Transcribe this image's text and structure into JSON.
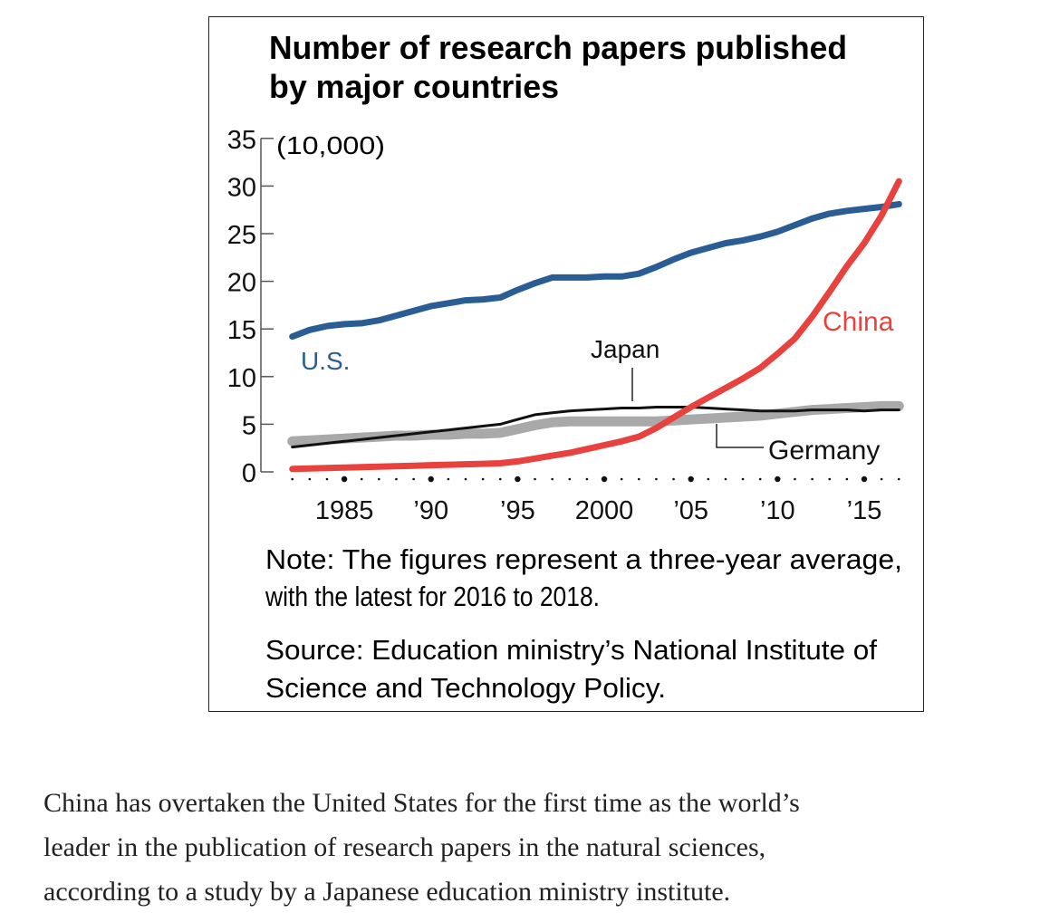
{
  "chart_data": {
    "type": "line",
    "title": [
      "Number of research papers published",
      "by major countries"
    ],
    "unit_label": "(10,000)",
    "ylim": [
      0,
      35
    ],
    "yticks": [
      0,
      5,
      10,
      15,
      20,
      25,
      30,
      35
    ],
    "xlim": [
      1982,
      2017
    ],
    "xtick_labels": [
      {
        "year": 1985,
        "label": "1985"
      },
      {
        "year": 1990,
        "label": "’90"
      },
      {
        "year": 1995,
        "label": "’95"
      },
      {
        "year": 2000,
        "label": "2000"
      },
      {
        "year": 2005,
        "label": "’05"
      },
      {
        "year": 2010,
        "label": "’10"
      },
      {
        "year": 2015,
        "label": "’15"
      }
    ],
    "x": [
      1982,
      1983,
      1984,
      1985,
      1986,
      1987,
      1988,
      1989,
      1990,
      1991,
      1992,
      1993,
      1994,
      1995,
      1996,
      1997,
      1998,
      1999,
      2000,
      2001,
      2002,
      2003,
      2004,
      2005,
      2006,
      2007,
      2008,
      2009,
      2010,
      2011,
      2012,
      2013,
      2014,
      2015,
      2016,
      2017
    ],
    "series": [
      {
        "name": "Germany",
        "label": "Germany",
        "color": "#a9a9a9",
        "values": [
          3.2,
          3.3,
          3.4,
          3.5,
          3.6,
          3.7,
          3.8,
          3.8,
          3.9,
          3.9,
          4.0,
          4.0,
          4.1,
          4.5,
          4.9,
          5.2,
          5.3,
          5.3,
          5.3,
          5.3,
          5.3,
          5.3,
          5.4,
          5.5,
          5.6,
          5.7,
          5.8,
          5.9,
          6.1,
          6.3,
          6.5,
          6.6,
          6.7,
          6.8,
          6.9,
          6.9
        ]
      },
      {
        "name": "Japan",
        "label": "Japan",
        "color": "#111111",
        "values": [
          2.6,
          2.8,
          3.0,
          3.2,
          3.4,
          3.6,
          3.8,
          4.0,
          4.2,
          4.4,
          4.6,
          4.8,
          5.0,
          5.5,
          6.0,
          6.2,
          6.4,
          6.5,
          6.6,
          6.7,
          6.7,
          6.8,
          6.8,
          6.8,
          6.7,
          6.6,
          6.5,
          6.4,
          6.4,
          6.4,
          6.5,
          6.5,
          6.5,
          6.4,
          6.5,
          6.5
        ]
      },
      {
        "name": "U.S.",
        "label": "U.S.",
        "color": "#2a5d94",
        "values": [
          14.2,
          14.9,
          15.3,
          15.5,
          15.6,
          15.9,
          16.4,
          16.9,
          17.4,
          17.7,
          18.0,
          18.1,
          18.3,
          19.1,
          19.8,
          20.4,
          20.4,
          20.4,
          20.5,
          20.5,
          20.8,
          21.5,
          22.3,
          23.0,
          23.5,
          24.0,
          24.3,
          24.7,
          25.2,
          25.9,
          26.6,
          27.1,
          27.4,
          27.6,
          27.8,
          28.1
        ]
      },
      {
        "name": "China",
        "label": "China",
        "color": "#e8423f",
        "values": [
          0.3,
          0.35,
          0.4,
          0.45,
          0.5,
          0.55,
          0.6,
          0.65,
          0.7,
          0.75,
          0.8,
          0.85,
          0.9,
          1.1,
          1.4,
          1.7,
          2.0,
          2.4,
          2.8,
          3.2,
          3.7,
          4.6,
          5.7,
          6.8,
          7.8,
          8.8,
          9.8,
          10.9,
          12.4,
          14.0,
          16.3,
          18.9,
          21.6,
          24.0,
          26.9,
          30.5
        ]
      }
    ],
    "notes": [
      "Note: The figures represent a three-year average,",
      "with the latest for 2016 to 2018.",
      "Source: Education ministry’s National Institute of",
      "Science and Technology Policy."
    ]
  },
  "caption": {
    "lines": [
      "China has overtaken the United States for the first time as the world’s",
      "leader in the publication of research papers in the natural sciences,",
      "according to a study by a Japanese education ministry institute."
    ]
  }
}
